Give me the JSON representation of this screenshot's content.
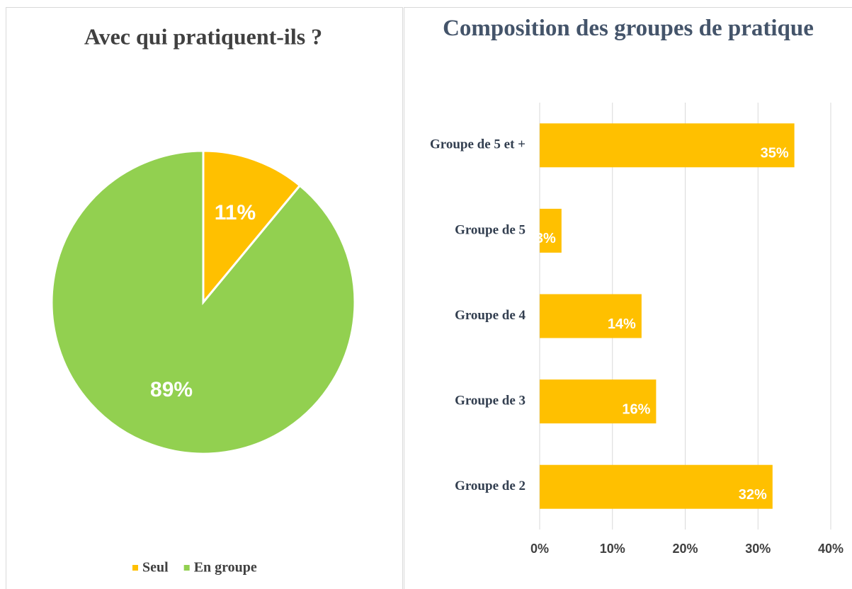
{
  "chart_data": [
    {
      "type": "pie",
      "title": "Avec qui pratiquent-ils ?",
      "categories": [
        "Seul",
        "En groupe"
      ],
      "values": [
        11,
        89
      ],
      "value_labels": [
        "11%",
        "89%"
      ],
      "colors": [
        "#ffc000",
        "#92d050"
      ],
      "legend": "bottom"
    },
    {
      "type": "hbar",
      "title": "Composition des groupes de pratique",
      "categories": [
        "Groupe de 5 et +",
        "Groupe de 5",
        "Groupe de 4",
        "Groupe de 3",
        "Groupe de 2"
      ],
      "values": [
        35,
        3,
        14,
        16,
        32
      ],
      "value_labels": [
        "35%",
        "3%",
        "14%",
        "16%",
        "32%"
      ],
      "color": "#ffc000",
      "xlim": [
        0,
        40
      ],
      "xticks": [
        {
          "value": 0,
          "label": "0%"
        },
        {
          "value": 10,
          "label": "10%"
        },
        {
          "value": 20,
          "label": "20%"
        },
        {
          "value": 30,
          "label": "30%"
        },
        {
          "value": 40,
          "label": "40%"
        }
      ],
      "grid": true
    }
  ]
}
